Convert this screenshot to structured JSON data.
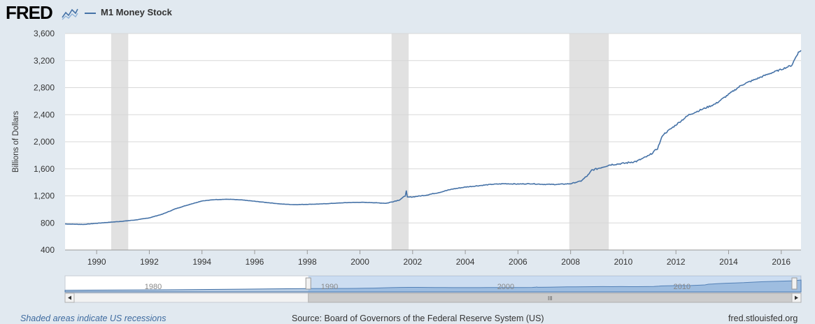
{
  "header": {
    "logo_text": "FRED",
    "legend_label": "M1 Money Stock",
    "series_color": "#4572a7"
  },
  "chart_data": {
    "type": "line",
    "ylabel": "Billions of Dollars",
    "ylim": [
      400,
      3600
    ],
    "xlim": [
      1988.8,
      2016.75
    ],
    "y_ticks": [
      "400",
      "800",
      "1,200",
      "1,600",
      "2,000",
      "2,400",
      "2,800",
      "3,200",
      "3,600"
    ],
    "y_tick_values": [
      400,
      800,
      1200,
      1600,
      2000,
      2400,
      2800,
      3200,
      3600
    ],
    "x_ticks": [
      "1990",
      "1992",
      "1994",
      "1996",
      "1998",
      "2000",
      "2002",
      "2004",
      "2006",
      "2008",
      "2010",
      "2012",
      "2014",
      "2016"
    ],
    "x_tick_values": [
      1990,
      1992,
      1994,
      1996,
      1998,
      2000,
      2002,
      2004,
      2006,
      2008,
      2010,
      2012,
      2014,
      2016
    ],
    "grid": true,
    "recessions": [
      [
        1990.55,
        1991.2
      ],
      [
        2001.2,
        2001.85
      ],
      [
        2007.95,
        2009.45
      ]
    ],
    "series": [
      {
        "name": "M1 Money Stock",
        "x": [
          1988.8,
          1989.5,
          1990.0,
          1990.5,
          1991.0,
          1991.5,
          1992.0,
          1992.5,
          1993.0,
          1993.5,
          1994.0,
          1994.5,
          1995.0,
          1995.5,
          1996.0,
          1996.5,
          1997.0,
          1997.5,
          1998.0,
          1998.5,
          1999.0,
          1999.5,
          2000.0,
          2000.5,
          2001.0,
          2001.5,
          2001.72,
          2001.76,
          2001.8,
          2002.0,
          2002.5,
          2003.0,
          2003.5,
          2004.0,
          2004.5,
          2005.0,
          2005.5,
          2006.0,
          2006.5,
          2007.0,
          2007.5,
          2008.0,
          2008.4,
          2008.7,
          2008.8,
          2009.0,
          2009.5,
          2010.0,
          2010.5,
          2011.0,
          2011.3,
          2011.5,
          2012.0,
          2012.5,
          2013.0,
          2013.5,
          2014.0,
          2014.5,
          2015.0,
          2015.5,
          2016.0,
          2016.4,
          2016.55,
          2016.65,
          2016.75
        ],
        "values": [
          785,
          778,
          795,
          810,
          825,
          845,
          875,
          930,
          1010,
          1070,
          1125,
          1145,
          1150,
          1140,
          1120,
          1100,
          1080,
          1070,
          1075,
          1080,
          1090,
          1100,
          1105,
          1100,
          1090,
          1140,
          1200,
          1275,
          1180,
          1185,
          1210,
          1250,
          1300,
          1330,
          1350,
          1370,
          1380,
          1375,
          1380,
          1370,
          1370,
          1380,
          1420,
          1520,
          1580,
          1600,
          1660,
          1680,
          1710,
          1800,
          1900,
          2100,
          2250,
          2400,
          2480,
          2560,
          2700,
          2840,
          2920,
          3000,
          3070,
          3130,
          3250,
          3320,
          3350
        ]
      }
    ]
  },
  "navigator": {
    "labels": [
      "1980",
      "1990",
      "2000",
      "2010"
    ],
    "label_years": [
      1980,
      1990,
      2000,
      2010
    ],
    "year_start": 1975.0,
    "year_end": 2016.75,
    "selected_from": 1988.8,
    "selected_to": 2016.75,
    "scrollbar_grip": "III"
  },
  "footer": {
    "recession_note": "Shaded areas indicate US recessions",
    "source": "Source: Board of Governors of the Federal Reserve System (US)",
    "site": "fred.stlouisfed.org"
  }
}
